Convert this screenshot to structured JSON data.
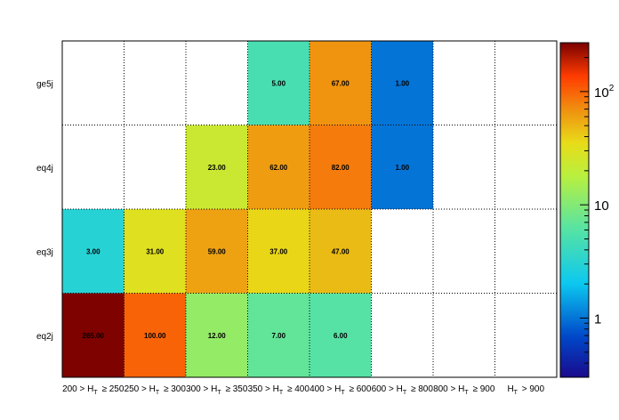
{
  "chart_data": {
    "type": "heatmap",
    "x_categories": [
      "200 > H_T ≥ 250",
      "250 > H_T ≥ 300",
      "300 > H_T ≥ 350",
      "350 > H_T ≥ 400",
      "400 > H_T ≥ 600",
      "600 > H_T ≥ 800",
      "800 > H_T ≥ 900",
      "H_T > 900"
    ],
    "y_categories": [
      "eq2j",
      "eq3j",
      "eq4j",
      "ge5j"
    ],
    "cells": [
      {
        "x": 0,
        "y": 0,
        "value": 265,
        "label": "265.00"
      },
      {
        "x": 1,
        "y": 0,
        "value": 100,
        "label": "100.00"
      },
      {
        "x": 2,
        "y": 0,
        "value": 12,
        "label": "12.00"
      },
      {
        "x": 3,
        "y": 0,
        "value": 7,
        "label": "7.00"
      },
      {
        "x": 4,
        "y": 0,
        "value": 6,
        "label": "6.00"
      },
      {
        "x": 0,
        "y": 1,
        "value": 3,
        "label": "3.00"
      },
      {
        "x": 1,
        "y": 1,
        "value": 31,
        "label": "31.00"
      },
      {
        "x": 2,
        "y": 1,
        "value": 59,
        "label": "59.00"
      },
      {
        "x": 3,
        "y": 1,
        "value": 37,
        "label": "37.00"
      },
      {
        "x": 4,
        "y": 1,
        "value": 47,
        "label": "47.00"
      },
      {
        "x": 2,
        "y": 2,
        "value": 23,
        "label": "23.00"
      },
      {
        "x": 3,
        "y": 2,
        "value": 62,
        "label": "62.00"
      },
      {
        "x": 4,
        "y": 2,
        "value": 82,
        "label": "82.00"
      },
      {
        "x": 5,
        "y": 2,
        "value": 1,
        "label": "1.00"
      },
      {
        "x": 3,
        "y": 3,
        "value": 5,
        "label": "5.00"
      },
      {
        "x": 4,
        "y": 3,
        "value": 67,
        "label": "67.00"
      },
      {
        "x": 5,
        "y": 3,
        "value": 1,
        "label": "1.00"
      }
    ],
    "colorbar": {
      "scale": "log",
      "range": [
        0.3,
        270
      ],
      "tick_values": [
        1,
        10,
        100
      ],
      "tick_labels": [
        "1",
        "10",
        "10^2"
      ]
    },
    "grid": true
  }
}
